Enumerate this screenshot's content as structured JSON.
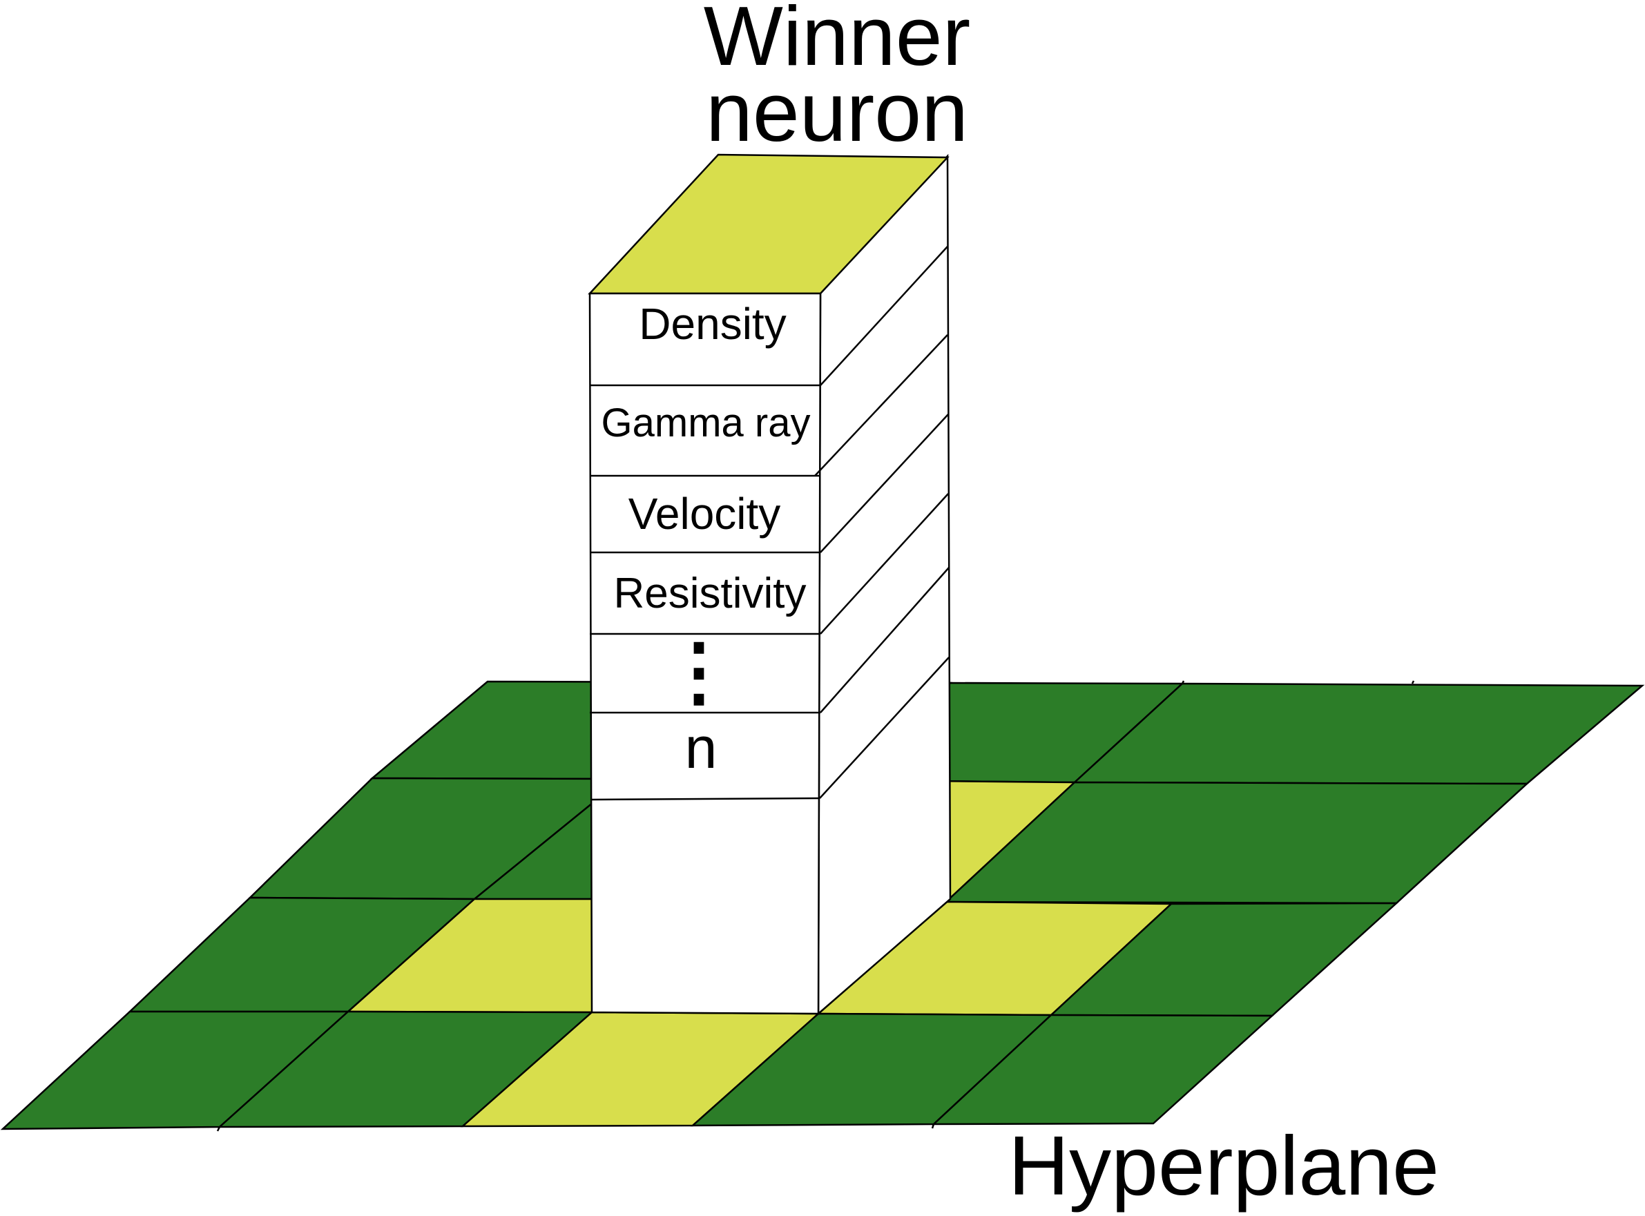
{
  "title": {
    "line1": "Winner",
    "line2": "neuron"
  },
  "column": {
    "layers": [
      "Density",
      "Gamma ray",
      "Velocity",
      "Resistivity",
      "⋮",
      "n"
    ]
  },
  "plane_label": "Hyperplane",
  "colors": {
    "dark_cell": "#2c7d28",
    "light_cell": "#d8de4c",
    "column_face": "#ffffff",
    "column_top": "#d8de4c",
    "line": "#000000"
  }
}
